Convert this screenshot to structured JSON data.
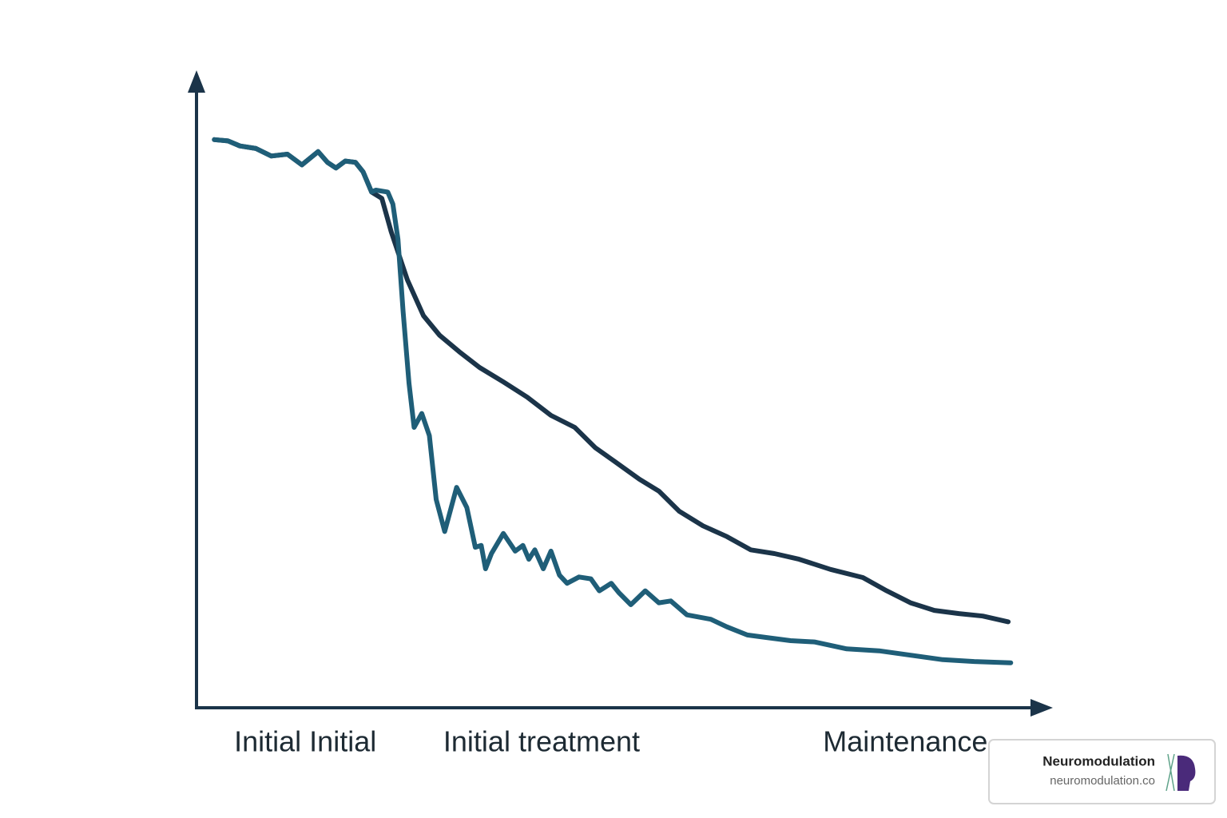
{
  "chart_data": {
    "type": "line",
    "xlim": [
      0,
      100
    ],
    "ylim": [
      0,
      100
    ],
    "xticks": [
      {
        "value": 12.8,
        "label": "Initial Initial"
      },
      {
        "value": 40.6,
        "label": "Initial treatment"
      },
      {
        "value": 83.4,
        "label": "Maintenance"
      }
    ],
    "series": [
      {
        "color": "#1b3449",
        "x": [
          2.1,
          3.7,
          5.1,
          7.0,
          8.8,
          10.7,
          12.4,
          14.3,
          15.4,
          16.4,
          17.5,
          18.7,
          19.6,
          20.6,
          21.8,
          22.9,
          24.8,
          26.7,
          28.6,
          30.9,
          33.3,
          36.1,
          38.9,
          41.7,
          44.5,
          46.9,
          49.2,
          52.1,
          54.4,
          56.8,
          59.6,
          62.4,
          65.2,
          68.0,
          70.9,
          74.6,
          78.4,
          81.2,
          84.0,
          86.8,
          89.7,
          92.5,
          95.5
        ],
        "values": [
          89.9,
          89.7,
          88.9,
          88.5,
          87.3,
          87.6,
          85.9,
          88.0,
          86.3,
          85.4,
          86.5,
          86.3,
          84.8,
          81.6,
          80.6,
          75.3,
          67.7,
          62.0,
          58.9,
          56.3,
          53.8,
          51.5,
          49.1,
          46.2,
          44.3,
          41.1,
          38.9,
          36.1,
          34.2,
          31.0,
          28.7,
          27.0,
          24.9,
          24.3,
          23.4,
          21.8,
          20.5,
          18.4,
          16.5,
          15.3,
          14.8,
          14.4,
          13.5
        ]
      },
      {
        "color": "#1f5e78",
        "x": [
          2.1,
          3.7,
          5.1,
          7.0,
          8.8,
          10.7,
          12.4,
          14.3,
          15.4,
          16.4,
          17.5,
          18.7,
          19.6,
          20.6,
          21.1,
          22.5,
          23.1,
          23.7,
          24.3,
          25.0,
          25.6,
          26.5,
          27.4,
          28.2,
          29.2,
          30.6,
          31.8,
          32.8,
          33.5,
          34.0,
          34.7,
          36.1,
          37.5,
          38.4,
          39.1,
          39.8,
          40.8,
          41.7,
          42.7,
          43.6,
          45.0,
          46.4,
          47.4,
          48.8,
          49.7,
          51.1,
          52.8,
          54.4,
          55.8,
          57.7,
          60.5,
          62.4,
          64.8,
          67.1,
          69.9,
          72.7,
          76.5,
          80.3,
          84.0,
          87.8,
          91.5,
          95.8
        ],
        "values": [
          89.9,
          89.7,
          88.9,
          88.5,
          87.3,
          87.6,
          85.9,
          88.0,
          86.3,
          85.4,
          86.5,
          86.3,
          84.8,
          81.6,
          81.9,
          81.6,
          79.7,
          74.1,
          62.7,
          51.3,
          44.3,
          46.5,
          43.0,
          32.9,
          27.8,
          34.8,
          31.6,
          25.3,
          25.6,
          21.9,
          24.3,
          27.5,
          24.7,
          25.6,
          23.4,
          24.9,
          21.9,
          24.7,
          20.9,
          19.6,
          20.6,
          20.3,
          18.4,
          19.6,
          18.1,
          16.2,
          18.4,
          16.5,
          16.8,
          14.6,
          13.9,
          12.7,
          11.4,
          11.0,
          10.5,
          10.3,
          9.2,
          8.9,
          8.2,
          7.5,
          7.2,
          7.0
        ]
      }
    ]
  },
  "badge": {
    "title": "Neuromodulation",
    "url": "neuromodulation.co"
  }
}
